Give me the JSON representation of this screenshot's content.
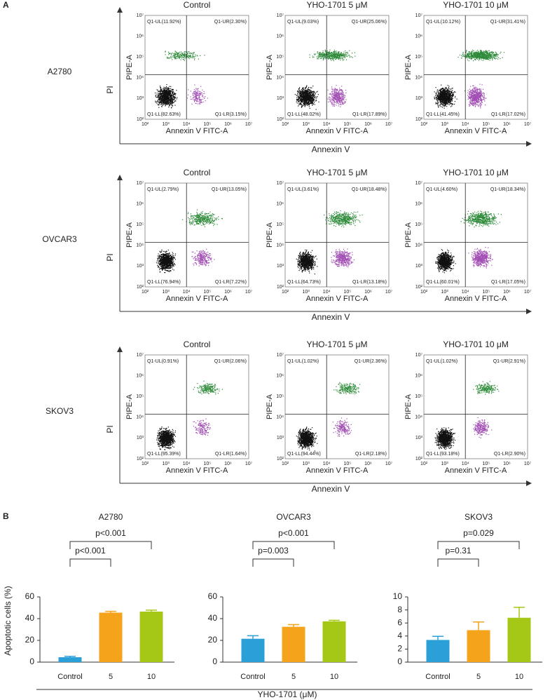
{
  "panel_a": {
    "label": "A",
    "x_label": "Annexin V",
    "y_label": "PI",
    "plot_x_label": "Annexin V FITC-A",
    "plot_y_label": "PIPE-A",
    "axis_ticks": [
      "10²",
      "10³",
      "10⁴",
      "10⁵",
      "10⁶",
      "10⁷"
    ],
    "columns": [
      "Control",
      "YHO-1701 5 μM",
      "YHO-1701 10 μM"
    ],
    "rows": [
      {
        "cell_line": "A2780",
        "plots": [
          {
            "UL": "Q1-UL(11.92%)",
            "UR": "Q1-UR(2.30%)",
            "LL": "Q1-LL(82.63%)",
            "LR": "Q1-LR(3.15%)"
          },
          {
            "UL": "Q1-UL(9.03%)",
            "UR": "Q1-UR(25.06%)",
            "LL": "Q1-LL(48.02%)",
            "LR": "Q1-LR(17.89%)"
          },
          {
            "UL": "Q1-UL(10.12%)",
            "UR": "Q1-UR(31.41%)",
            "LL": "Q1-LL(41.45%)",
            "LR": "Q1-LR(17.02%)"
          }
        ]
      },
      {
        "cell_line": "OVCAR3",
        "plots": [
          {
            "UL": "Q1-UL(2.79%)",
            "UR": "Q1-UR(13.05%)",
            "LL": "Q1-LL(76.94%)",
            "LR": "Q1-LR(7.22%)"
          },
          {
            "UL": "Q1-UL(3.61%)",
            "UR": "Q1-UR(18.48%)",
            "LL": "Q1-LL(64.73%)",
            "LR": "Q1-LR(13.18%)"
          },
          {
            "UL": "Q1-UL(4.60%)",
            "UR": "Q1-UR(18.34%)",
            "LL": "Q1-LL(60.01%)",
            "LR": "Q1-LR(17.05%)"
          }
        ]
      },
      {
        "cell_line": "SKOV3",
        "plots": [
          {
            "UL": "Q1-UL(0.91%)",
            "UR": "Q1-UR(2.06%)",
            "LL": "Q1-LL(95.39%)",
            "LR": "Q1-LR(1.64%)"
          },
          {
            "UL": "Q1-UL(1.02%)",
            "UR": "Q1-UR(2.36%)",
            "LL": "Q1-LL(94.44%)",
            "LR": "Q1-LR(2.18%)"
          },
          {
            "UL": "Q1-UL(1.02%)",
            "UR": "Q1-UR(2.91%)",
            "LL": "Q1-LL(93.18%)",
            "LR": "Q1-LR(2.90%)"
          }
        ]
      }
    ]
  },
  "panel_b": {
    "label": "B",
    "x_label": "YHO-1701 (μM)",
    "y_label": "Apoptotic cells (%)"
  },
  "chart_data": [
    {
      "type": "bar",
      "title": "A2780",
      "categories": [
        "Control",
        "5",
        "10"
      ],
      "values": [
        4.5,
        45.5,
        46.5
      ],
      "errors": [
        0.8,
        1.2,
        1.3
      ],
      "colors": [
        "#2a9fd8",
        "#f5a31a",
        "#a5c716"
      ],
      "ylim": [
        0,
        60
      ],
      "yticks": [
        0,
        20,
        40,
        60
      ],
      "annotations": [
        {
          "text": "p<0.001",
          "from": 0,
          "to": 1
        },
        {
          "text": "p<0.001",
          "from": 0,
          "to": 2
        }
      ]
    },
    {
      "type": "bar",
      "title": "OVCAR3",
      "categories": [
        "Control",
        "5",
        "10"
      ],
      "values": [
        21.5,
        32.5,
        37.5
      ],
      "errors": [
        2.8,
        2,
        1
      ],
      "colors": [
        "#2a9fd8",
        "#f5a31a",
        "#a5c716"
      ],
      "ylim": [
        0,
        60
      ],
      "yticks": [
        0,
        20,
        40,
        60
      ],
      "annotations": [
        {
          "text": "p=0.003",
          "from": 0,
          "to": 1
        },
        {
          "text": "p<0.001",
          "from": 0,
          "to": 2
        }
      ]
    },
    {
      "type": "bar",
      "title": "SKOV3",
      "categories": [
        "Control",
        "5",
        "10"
      ],
      "values": [
        3.4,
        4.9,
        6.8
      ],
      "errors": [
        0.55,
        1.25,
        1.6
      ],
      "colors": [
        "#2a9fd8",
        "#f5a31a",
        "#a5c716"
      ],
      "ylim": [
        0,
        10
      ],
      "yticks": [
        0,
        2,
        4,
        6,
        8,
        10
      ],
      "annotations": [
        {
          "text": "p=0.31",
          "from": 0,
          "to": 1
        },
        {
          "text": "p=0.029",
          "from": 0,
          "to": 2
        }
      ]
    }
  ]
}
